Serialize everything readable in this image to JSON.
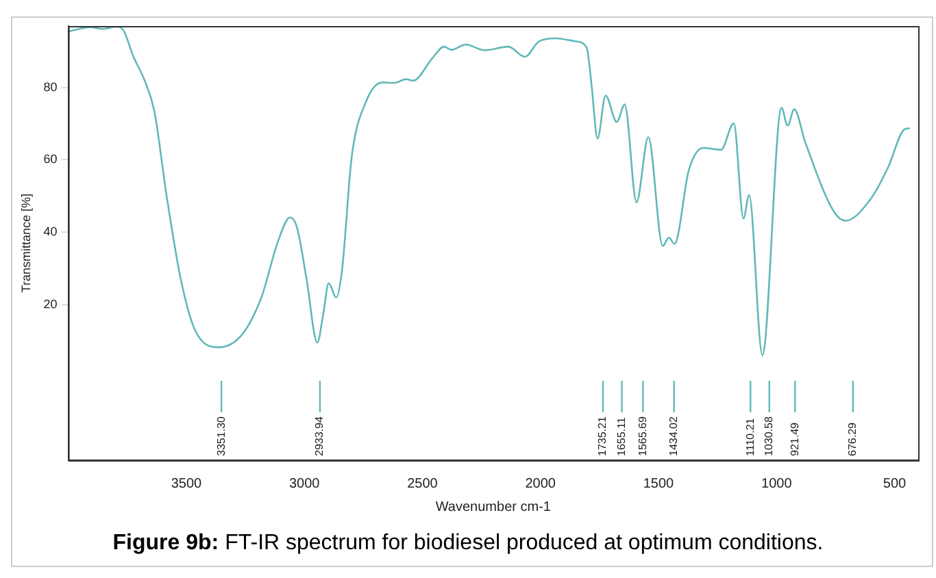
{
  "chart_data": {
    "type": "line",
    "title": "Figure 9b: FT-IR spectrum for biodiesel produced at optimum conditions.",
    "xlabel": "Wavenumber cm-1",
    "ylabel": "Transmittance [%]",
    "xlim": [
      4000,
      400
    ],
    "xticks": [
      3500,
      3000,
      2500,
      2000,
      1500,
      1000,
      500
    ],
    "ylim": [
      -23,
      97
    ],
    "yticks": [
      20,
      40,
      60,
      80
    ],
    "grid": false,
    "legend": false,
    "marker": "none",
    "line_style": "solid",
    "series": [
      {
        "color": "#62b8b8",
        "x": [
          3997,
          3906,
          3856,
          3796,
          3766,
          3725,
          3675,
          3635,
          3584,
          3524,
          3464,
          3363,
          3263,
          3182,
          3112,
          3061,
          3031,
          2991,
          2945,
          2921,
          2897,
          2865,
          2840,
          2800,
          2740,
          2669,
          2619,
          2569,
          2539,
          2458,
          2408,
          2377,
          2317,
          2237,
          2136,
          2066,
          2005,
          1935,
          1854,
          1804,
          1784,
          1758,
          1724,
          1677,
          1643,
          1593,
          1543,
          1482,
          1456,
          1432,
          1371,
          1311,
          1235,
          1181,
          1140,
          1116,
          1060,
          979,
          953,
          925,
          879,
          758,
          708,
          597,
          527,
          457,
          436
        ],
        "values": [
          95.5,
          96.7,
          96.2,
          96.8,
          95.8,
          88.7,
          81.7,
          73.3,
          50.3,
          27.2,
          13.1,
          8.2,
          11.8,
          22.0,
          37.4,
          44.1,
          41.3,
          27.2,
          9.5,
          16.9,
          25.9,
          22.0,
          29.7,
          60.5,
          75.9,
          81.4,
          81.3,
          82.3,
          81.9,
          88.1,
          91.3,
          90.4,
          91.9,
          90.3,
          91.3,
          88.5,
          92.8,
          93.6,
          92.8,
          91.0,
          81.0,
          65.9,
          77.8,
          70.5,
          75.3,
          48.3,
          66.3,
          36.2,
          38.5,
          36.8,
          57.3,
          63.3,
          62.8,
          70.1,
          43.8,
          50.3,
          6.0,
          74.4,
          69.5,
          74.0,
          65.0,
          45.8,
          43.2,
          49.6,
          58.0,
          68.5,
          68.7
        ]
      }
    ],
    "ref_lines": [
      {
        "axis": "x",
        "value": 3351.3,
        "label": "3351.30",
        "color": "#62b8b8"
      },
      {
        "axis": "x",
        "value": 2933.94,
        "label": "2933.94",
        "color": "#62b8b8"
      },
      {
        "axis": "x",
        "value": 1735.21,
        "label": "1735.21",
        "color": "#62b8b8"
      },
      {
        "axis": "x",
        "value": 1655.11,
        "label": "1655.11",
        "color": "#62b8b8"
      },
      {
        "axis": "x",
        "value": 1565.69,
        "label": "1565.69",
        "color": "#62b8b8"
      },
      {
        "axis": "x",
        "value": 1434.02,
        "label": "1434.02",
        "color": "#62b8b8"
      },
      {
        "axis": "x",
        "value": 1110.21,
        "label": "1110.21",
        "color": "#62b8b8"
      },
      {
        "axis": "x",
        "value": 1030.58,
        "label": "1030.58",
        "color": "#62b8b8"
      },
      {
        "axis": "x",
        "value": 921.49,
        "label": "921.49",
        "color": "#62b8b8"
      },
      {
        "axis": "x",
        "value": 676.29,
        "label": "676.29",
        "color": "#62b8b8"
      }
    ]
  }
}
